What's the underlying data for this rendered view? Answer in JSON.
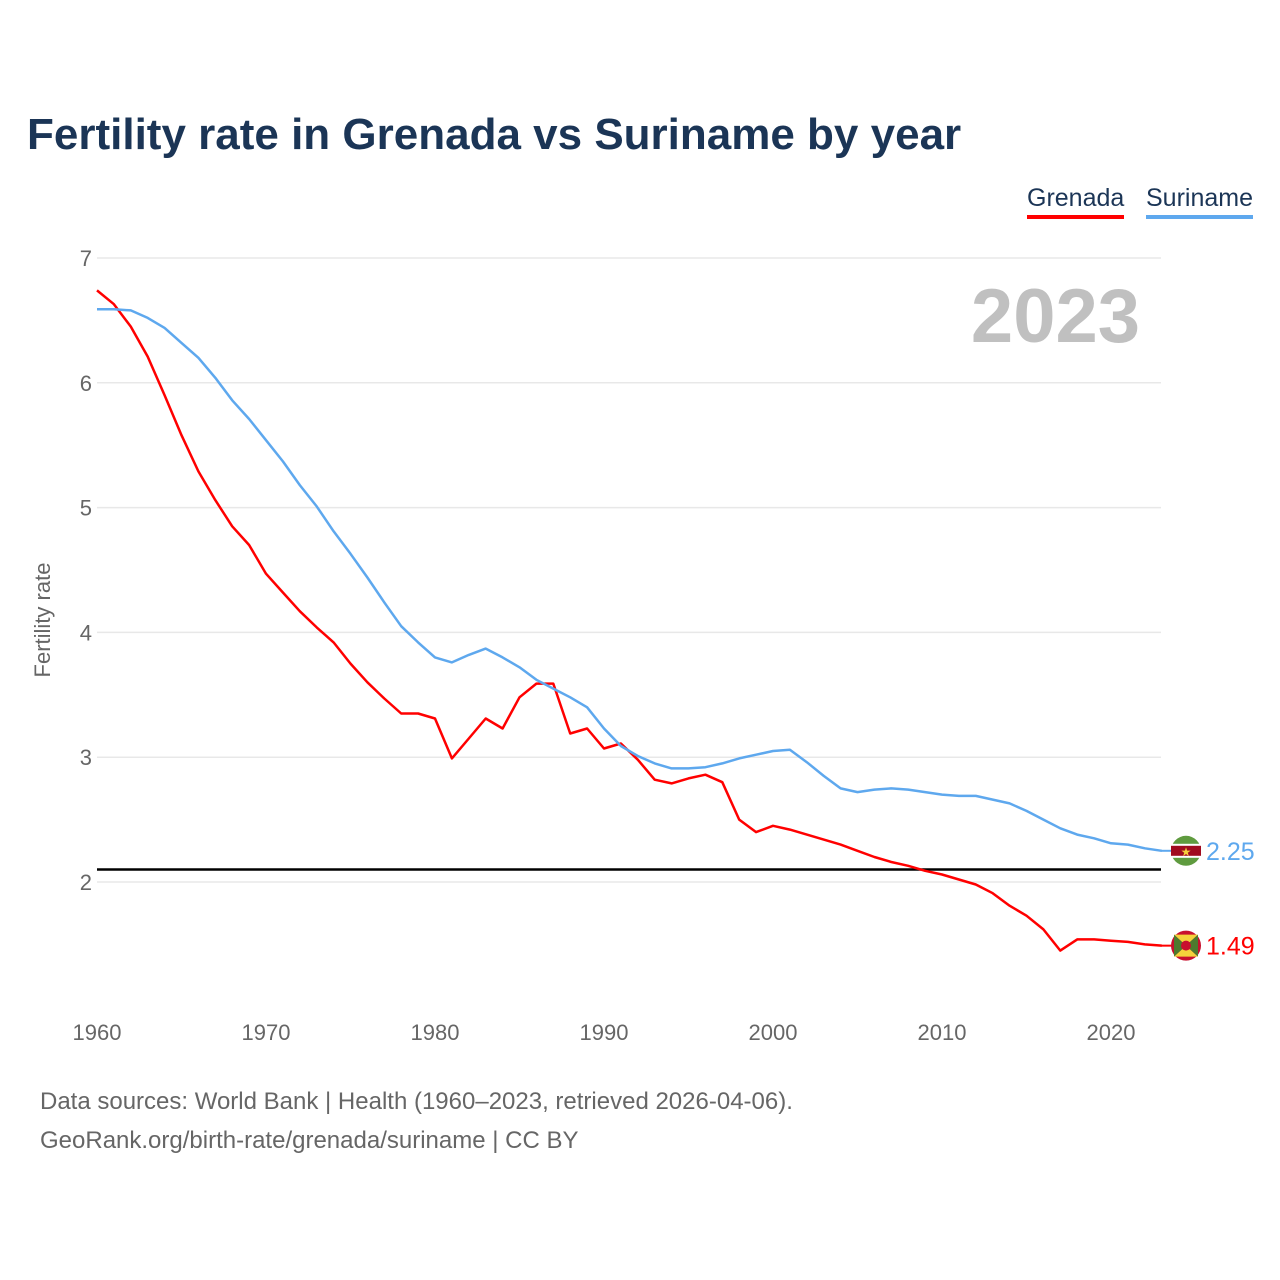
{
  "title": "Fertility rate in Grenada vs Suriname by year",
  "footer": {
    "line1": "Data sources: World Bank | Health (1960–2023, retrieved 2026-04-06).",
    "line2": "GeoRank.org/birth-rate/grenada/suriname | CC BY"
  },
  "chart_data": {
    "type": "line",
    "title": "Fertility rate in Grenada vs Suriname by year",
    "ylabel": "Fertility rate",
    "xlabel": "",
    "xlim": [
      1960,
      2023
    ],
    "ylim": [
      1,
      7
    ],
    "yticks": [
      2,
      3,
      4,
      5,
      6,
      7
    ],
    "xticks": [
      1960,
      1970,
      1980,
      1990,
      2000,
      2010,
      2020
    ],
    "year_label": "2023",
    "reference_line": 2.1,
    "legend_position": "top-right",
    "x": [
      1960,
      1961,
      1962,
      1963,
      1964,
      1965,
      1966,
      1967,
      1968,
      1969,
      1970,
      1971,
      1972,
      1973,
      1974,
      1975,
      1976,
      1977,
      1978,
      1979,
      1980,
      1981,
      1982,
      1983,
      1984,
      1985,
      1986,
      1987,
      1988,
      1989,
      1990,
      1991,
      1992,
      1993,
      1994,
      1995,
      1996,
      1997,
      1998,
      1999,
      2000,
      2001,
      2002,
      2003,
      2004,
      2005,
      2006,
      2007,
      2008,
      2009,
      2010,
      2011,
      2012,
      2013,
      2014,
      2015,
      2016,
      2017,
      2018,
      2019,
      2020,
      2021,
      2022,
      2023
    ],
    "series": [
      {
        "name": "Grenada",
        "color": "#ff0000",
        "end_label": "1.49",
        "values": [
          6.74,
          6.63,
          6.45,
          6.21,
          5.9,
          5.58,
          5.29,
          5.06,
          4.85,
          4.7,
          4.47,
          4.32,
          4.17,
          4.04,
          3.92,
          3.75,
          3.6,
          3.47,
          3.35,
          3.35,
          3.31,
          2.99,
          3.15,
          3.31,
          3.23,
          3.48,
          3.59,
          3.59,
          3.19,
          3.23,
          3.07,
          3.11,
          2.98,
          2.82,
          2.79,
          2.83,
          2.86,
          2.8,
          2.5,
          2.4,
          2.45,
          2.42,
          2.38,
          2.34,
          2.3,
          2.25,
          2.2,
          2.16,
          2.13,
          2.09,
          2.06,
          2.02,
          1.98,
          1.91,
          1.81,
          1.73,
          1.62,
          1.45,
          1.54,
          1.54,
          1.53,
          1.52,
          1.5,
          1.49
        ]
      },
      {
        "name": "Suriname",
        "color": "#5ea8ee",
        "end_label": "2.25",
        "values": [
          6.59,
          6.59,
          6.58,
          6.52,
          6.44,
          6.32,
          6.2,
          6.04,
          5.86,
          5.71,
          5.54,
          5.37,
          5.18,
          5.01,
          4.81,
          4.63,
          4.44,
          4.24,
          4.05,
          3.92,
          3.8,
          3.76,
          3.82,
          3.87,
          3.8,
          3.72,
          3.62,
          3.55,
          3.48,
          3.4,
          3.23,
          3.09,
          3.01,
          2.95,
          2.91,
          2.91,
          2.92,
          2.95,
          2.99,
          3.02,
          3.05,
          3.06,
          2.96,
          2.85,
          2.75,
          2.72,
          2.74,
          2.75,
          2.74,
          2.72,
          2.7,
          2.69,
          2.69,
          2.66,
          2.63,
          2.57,
          2.5,
          2.43,
          2.38,
          2.35,
          2.31,
          2.3,
          2.27,
          2.25
        ]
      }
    ]
  }
}
